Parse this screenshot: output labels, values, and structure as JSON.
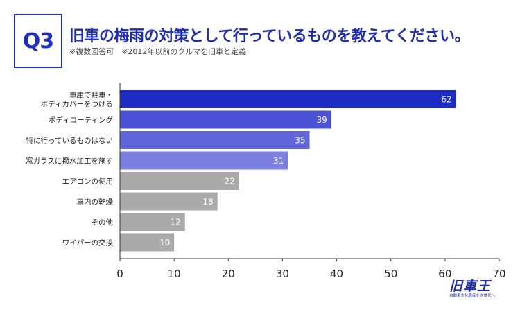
{
  "header": {
    "badge": "Q3",
    "question": "旧車の梅雨の対策として行っているものを教えてください。",
    "note": "※複数回答可　※2012年以前のクルマを旧車と定義"
  },
  "colors": {
    "accent": "#1d2cc4",
    "gray_bar": "#aaaaaa"
  },
  "chart_data": {
    "type": "bar",
    "orientation": "horizontal",
    "title": "旧車の梅雨の対策として行っているものを教えてください。",
    "xlabel": "",
    "ylabel": "",
    "xlim": [
      0,
      70
    ],
    "xticks": [
      0,
      10,
      20,
      30,
      40,
      50,
      60,
      70
    ],
    "grid": false,
    "categories": [
      [
        "車庫で駐車・",
        "ボディカバーをつける"
      ],
      [
        "ボディコーティング"
      ],
      [
        "特に行っているものはない"
      ],
      [
        "窓ガラスに撥水加工を施す"
      ],
      [
        "エアコンの使用"
      ],
      [
        "車内の乾燥"
      ],
      [
        "その他"
      ],
      [
        "ワイパーの交換"
      ]
    ],
    "values": [
      62,
      39,
      35,
      31,
      22,
      18,
      12,
      10
    ],
    "bar_colors": [
      "#1d2cc4",
      "#4c52d8",
      "#6065dc",
      "#7b80e2",
      "#aaaaaa",
      "#aaaaaa",
      "#aaaaaa",
      "#aaaaaa"
    ]
  },
  "logo": {
    "name": "旧車王",
    "tagline": "自動車文化遺産を次世代へ"
  }
}
